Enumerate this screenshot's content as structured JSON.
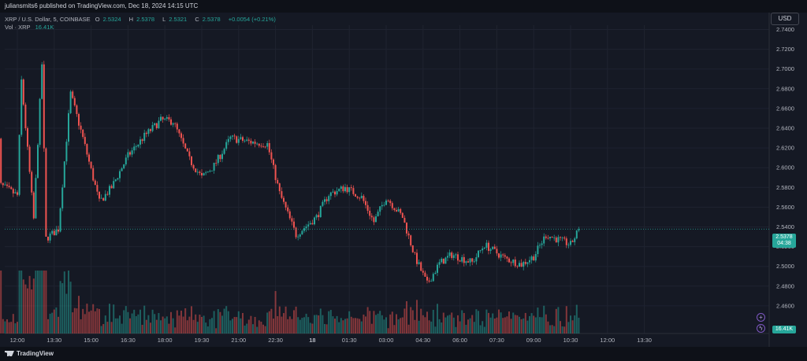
{
  "publisher": "juliansmits6 published on TradingView.com, Dec 18, 2024 14:15 UTC",
  "legend": {
    "symbol": "XRP / U.S. Dollar, 5, COINBASE",
    "o_label": "O",
    "o": "2.5324",
    "h_label": "H",
    "h": "2.5378",
    "l_label": "L",
    "l": "2.5321",
    "c_label": "C",
    "c": "2.5378",
    "change": "+0.0054 (+0.21%)",
    "vol_label": "Vol · XRP",
    "vol": "16.41K"
  },
  "currency_button": "USD",
  "price_badge": {
    "price": "2.5378",
    "countdown": "04:38"
  },
  "volume_badge": "16.41K",
  "icons": {
    "plus": "plus-circle-icon",
    "lightning": "lightning-icon"
  },
  "branding": "TradingView",
  "colors": {
    "up": "#26a69a",
    "down": "#ef5350",
    "background": "#151924"
  },
  "chart_data": {
    "type": "candlestick",
    "interval": "5",
    "y_ticks": [
      "2.7400",
      "2.7200",
      "2.7000",
      "2.6800",
      "2.6600",
      "2.6400",
      "2.6200",
      "2.6000",
      "2.5800",
      "2.5600",
      "2.5400",
      "2.5200",
      "2.5000",
      "2.4800",
      "2.4600"
    ],
    "x_ticks": [
      "12:00",
      "13:30",
      "15:00",
      "16:30",
      "18:00",
      "19:30",
      "21:00",
      "22:30",
      "18",
      "01:30",
      "03:00",
      "04:30",
      "06:00",
      "07:30",
      "09:00",
      "10:30",
      "12:00",
      "13:30"
    ],
    "ylim": [
      2.45,
      2.74
    ],
    "last_price": 2.5378,
    "close_path": [
      {
        "t": "11:05",
        "close": 2.718
      },
      {
        "t": "12:10",
        "close": 2.688
      },
      {
        "t": "13:00",
        "close": 2.705
      },
      {
        "t": "14:10",
        "close": 2.675
      },
      {
        "t": "14:40",
        "close": 2.63
      },
      {
        "t": "15:20",
        "close": 2.565
      },
      {
        "t": "15:50",
        "close": 2.58
      },
      {
        "t": "16:30",
        "close": 2.612
      },
      {
        "t": "17:10",
        "close": 2.632
      },
      {
        "t": "17:50",
        "close": 2.648
      },
      {
        "t": "18:20",
        "close": 2.647
      },
      {
        "t": "19:00",
        "close": 2.608
      },
      {
        "t": "19:30",
        "close": 2.59
      },
      {
        "t": "20:00",
        "close": 2.602
      },
      {
        "t": "20:40",
        "close": 2.63
      },
      {
        "t": "21:30",
        "close": 2.626
      },
      {
        "t": "22:10",
        "close": 2.624
      },
      {
        "t": "22:40",
        "close": 2.574
      },
      {
        "t": "23:20",
        "close": 2.532
      },
      {
        "t": "00:10",
        "close": 2.55
      },
      {
        "t": "00:40",
        "close": 2.573
      },
      {
        "t": "01:20",
        "close": 2.58
      },
      {
        "t": "02:00",
        "close": 2.57
      },
      {
        "t": "02:30",
        "close": 2.545
      },
      {
        "t": "03:00",
        "close": 2.57
      },
      {
        "t": "03:40",
        "close": 2.55
      },
      {
        "t": "04:10",
        "close": 2.51
      },
      {
        "t": "04:40",
        "close": 2.482
      },
      {
        "t": "05:10",
        "close": 2.503
      },
      {
        "t": "05:40",
        "close": 2.512
      },
      {
        "t": "06:30",
        "close": 2.504
      },
      {
        "t": "07:00",
        "close": 2.522
      },
      {
        "t": "07:50",
        "close": 2.508
      },
      {
        "t": "08:30",
        "close": 2.502
      },
      {
        "t": "09:00",
        "close": 2.51
      },
      {
        "t": "09:30",
        "close": 2.532
      },
      {
        "t": "10:30",
        "close": 2.522
      },
      {
        "t": "10:50",
        "close": 2.537
      },
      {
        "t": "11:20",
        "close": 2.582
      },
      {
        "t": "12:00",
        "close": 2.572
      },
      {
        "t": "12:40",
        "close": 2.548
      },
      {
        "t": "13:10",
        "close": 2.528
      },
      {
        "t": "13:40",
        "close": 2.5378
      }
    ]
  }
}
